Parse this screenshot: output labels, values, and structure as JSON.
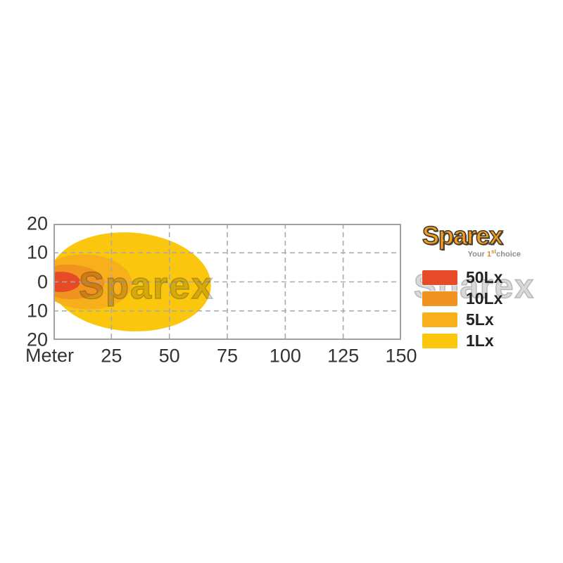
{
  "watermark": {
    "plot_text": "Sparex",
    "legend_text": "Sparex"
  },
  "logo": {
    "name": "Sparex",
    "tagline_pre": "Your ",
    "tagline_num": "1",
    "tagline_sup": "st",
    "tagline_post": "choice"
  },
  "chart_data": {
    "type": "area",
    "title": "",
    "xlabel": "Meter",
    "ylabel": "",
    "xlim": [
      0,
      150
    ],
    "ylim": [
      -20,
      20
    ],
    "grid": "dashed",
    "legend_position": "right",
    "x_ticks": [
      "25",
      "50",
      "75",
      "100",
      "125",
      "150"
    ],
    "x_tick_values": [
      25,
      50,
      75,
      100,
      125,
      150
    ],
    "y_ticks": [
      "20",
      "10",
      "0",
      "10",
      "20"
    ],
    "y_tick_values": [
      20,
      10,
      0,
      -10,
      -20
    ],
    "grid_y_values": [
      10,
      0,
      -10
    ],
    "beam_lobes": [
      {
        "label": "1Lx",
        "color": "#FBC70E",
        "reach_m": 68,
        "center_m": 33,
        "half_height_m": 17,
        "tilt_deg": 4
      },
      {
        "label": "5Lx",
        "color": "#F7B01B",
        "reach_m": 34,
        "center_m": 14,
        "half_height_m": 9.5,
        "tilt_deg": 3
      },
      {
        "label": "10Lx",
        "color": "#F0941F",
        "reach_m": 22,
        "center_m": 7,
        "half_height_m": 6,
        "tilt_deg": 2
      },
      {
        "label": "50Lx",
        "color": "#E74A26",
        "reach_m": 11.5,
        "center_m": 3,
        "half_height_m": 3.5,
        "tilt_deg": 0
      }
    ],
    "legend": [
      {
        "label": "50Lx",
        "color": "#E74A26"
      },
      {
        "label": "10Lx",
        "color": "#F0941F"
      },
      {
        "label": "5Lx",
        "color": "#F7B01B"
      },
      {
        "label": "1Lx",
        "color": "#FCC60D"
      }
    ]
  }
}
